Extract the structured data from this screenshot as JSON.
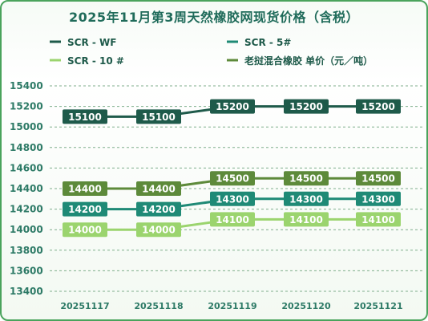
{
  "chart_data": {
    "type": "line",
    "title": "2025年11月第3周天然橡胶网现货价格（含税）",
    "categories": [
      "20251117",
      "20251118",
      "20251119",
      "20251120",
      "20251121"
    ],
    "ylim": [
      13400,
      15400
    ],
    "yticks": [
      13400,
      13600,
      13800,
      14000,
      14200,
      14400,
      14600,
      14800,
      15000,
      15200,
      15400
    ],
    "grid": true,
    "legend_position": "top",
    "series": [
      {
        "name": "SCR - WF",
        "color": "#1e5a4a",
        "values": [
          15100,
          15100,
          15200,
          15200,
          15200
        ]
      },
      {
        "name": "SCR - 5#",
        "color": "#1f8a76",
        "values": [
          14200,
          14200,
          14300,
          14300,
          14300
        ]
      },
      {
        "name": "SCR - 10 #",
        "color": "#9bd46e",
        "values": [
          14000,
          14000,
          14100,
          14100,
          14100
        ]
      },
      {
        "name": "老挝混合橡胶 单价（元／吨）",
        "color": "#5d8a3a",
        "values": [
          14400,
          14400,
          14500,
          14500,
          14500
        ]
      }
    ]
  }
}
